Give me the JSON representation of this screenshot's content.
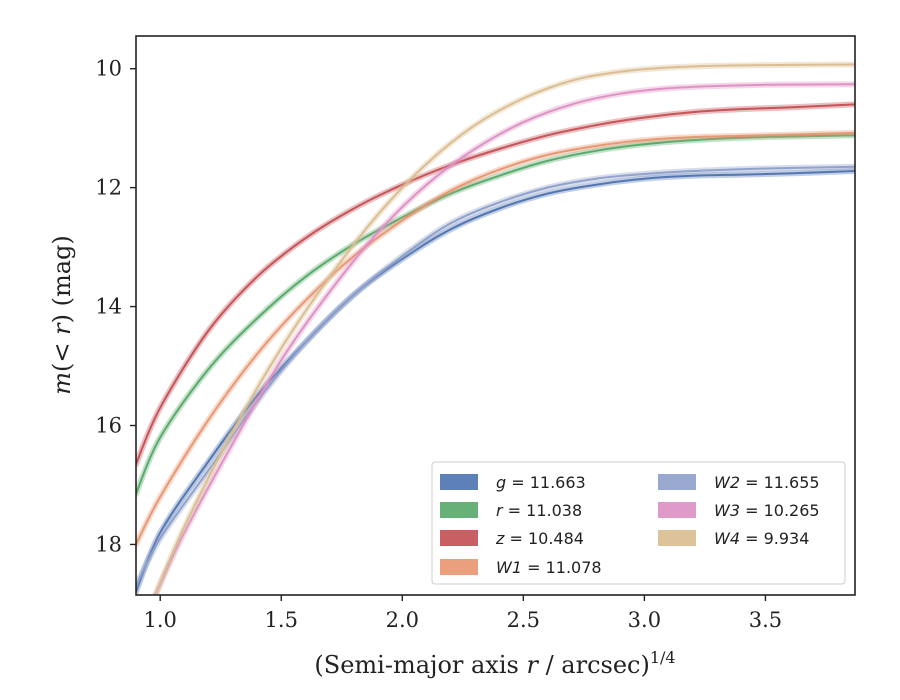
{
  "chart_data": {
    "type": "line",
    "xlabel_main": "(Semi-major axis ",
    "xlabel_var": "r",
    "xlabel_rest": " / arcsec)",
    "xlabel_sup": "1/4",
    "ylabel_pre": "m",
    "ylabel_mid": "(< ",
    "ylabel_var": "r",
    "ylabel_post": ") (mag)",
    "xlim": [
      0.9,
      3.87
    ],
    "ylim": [
      18.85,
      9.45
    ],
    "y_inverted": true,
    "x_ticks": [
      "1.0",
      "1.5",
      "2.0",
      "2.5",
      "3.0",
      "3.5"
    ],
    "y_ticks": [
      "10",
      "12",
      "14",
      "16",
      "18"
    ],
    "legend_position": "lower-right",
    "legend_columns": 2,
    "series": [
      {
        "name": "g",
        "label_value": " = 11.663",
        "color": "#4c72b0",
        "x_start": 0.9,
        "x": [
          0.9,
          1.0,
          1.2,
          1.4,
          1.6,
          1.8,
          2.0,
          2.2,
          2.4,
          2.6,
          2.8,
          3.0,
          3.2,
          3.4,
          3.6,
          3.87
        ],
        "y": [
          18.8,
          17.8,
          16.6,
          15.5,
          14.6,
          13.8,
          13.2,
          12.7,
          12.35,
          12.1,
          11.95,
          11.85,
          11.8,
          11.78,
          11.76,
          11.72
        ]
      },
      {
        "name": "r",
        "label_value": " = 11.038",
        "color": "#55a868",
        "x_start": 0.9,
        "x": [
          0.9,
          1.0,
          1.2,
          1.4,
          1.6,
          1.8,
          2.0,
          2.2,
          2.4,
          2.6,
          2.8,
          3.0,
          3.2,
          3.4,
          3.6,
          3.87
        ],
        "y": [
          17.15,
          16.2,
          15.05,
          14.2,
          13.5,
          12.95,
          12.5,
          12.1,
          11.8,
          11.55,
          11.38,
          11.27,
          11.2,
          11.16,
          11.14,
          11.12
        ]
      },
      {
        "name": "z",
        "label_value": " = 10.484",
        "color": "#c44e52",
        "x_start": 0.9,
        "x": [
          0.9,
          1.0,
          1.2,
          1.4,
          1.6,
          1.8,
          2.0,
          2.2,
          2.4,
          2.6,
          2.8,
          3.0,
          3.2,
          3.4,
          3.6,
          3.87
        ],
        "y": [
          16.65,
          15.7,
          14.4,
          13.5,
          12.85,
          12.35,
          11.95,
          11.62,
          11.35,
          11.12,
          10.95,
          10.82,
          10.73,
          10.68,
          10.65,
          10.6
        ]
      },
      {
        "name": "W1",
        "label_value": " = 11.078",
        "color": "#e8956f",
        "x_start": 0.9,
        "x": [
          0.9,
          1.0,
          1.2,
          1.4,
          1.6,
          1.8,
          2.0,
          2.2,
          2.4,
          2.6,
          2.8,
          3.0,
          3.2,
          3.4,
          3.6,
          3.87
        ],
        "y": [
          18.0,
          17.2,
          15.9,
          14.8,
          13.9,
          13.15,
          12.55,
          12.05,
          11.7,
          11.45,
          11.3,
          11.2,
          11.15,
          11.13,
          11.11,
          11.08
        ]
      },
      {
        "name": "W2",
        "label_value": " = 11.655",
        "color": "#8d9ec9",
        "x_start": 0.9,
        "x": [
          0.9,
          1.0,
          1.2,
          1.4,
          1.6,
          1.8,
          2.0,
          2.2,
          2.4,
          2.6,
          2.8,
          3.0,
          3.2,
          3.4,
          3.6,
          3.87
        ],
        "y": [
          18.7,
          17.9,
          16.75,
          15.6,
          14.6,
          13.8,
          13.15,
          12.6,
          12.25,
          12.0,
          11.85,
          11.77,
          11.72,
          11.69,
          11.67,
          11.65
        ]
      },
      {
        "name": "W3",
        "label_value": " = 10.265",
        "color": "#dd8fc3",
        "x_start": 0.98,
        "x": [
          0.98,
          1.1,
          1.3,
          1.5,
          1.7,
          1.9,
          2.1,
          2.3,
          2.5,
          2.7,
          2.9,
          3.1,
          3.3,
          3.5,
          3.87
        ],
        "y": [
          18.85,
          17.8,
          16.3,
          14.9,
          13.75,
          12.75,
          11.95,
          11.35,
          10.9,
          10.6,
          10.42,
          10.33,
          10.29,
          10.27,
          10.26
        ]
      },
      {
        "name": "W4",
        "label_value": " = 9.934",
        "color": "#d9bc8f",
        "x_start": 0.98,
        "x": [
          0.98,
          1.1,
          1.3,
          1.5,
          1.7,
          1.9,
          2.1,
          2.3,
          2.5,
          2.7,
          2.9,
          3.1,
          3.3,
          3.5,
          3.87
        ],
        "y": [
          18.85,
          17.7,
          16.1,
          14.7,
          13.5,
          12.45,
          11.6,
          10.95,
          10.5,
          10.2,
          10.05,
          9.98,
          9.95,
          9.94,
          9.93
        ]
      }
    ]
  }
}
